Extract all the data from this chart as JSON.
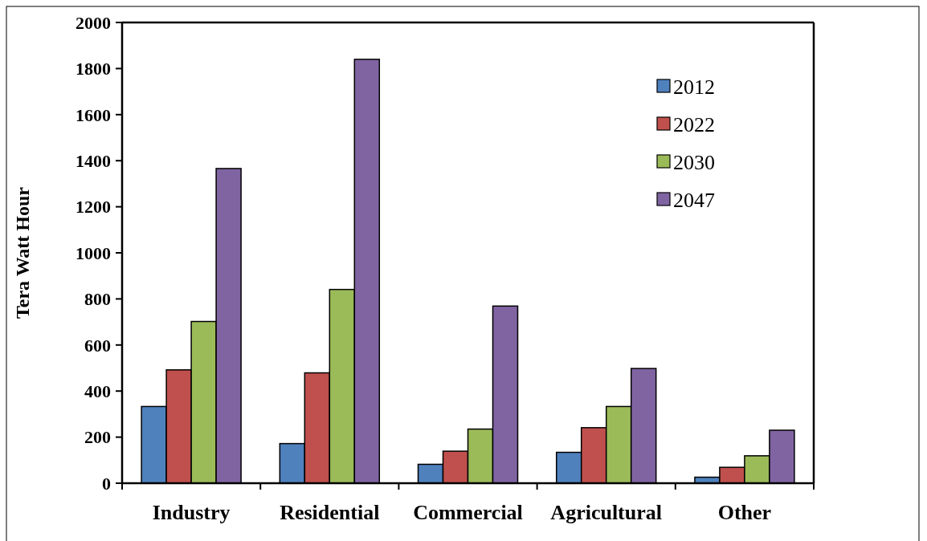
{
  "chart_data": {
    "type": "bar",
    "ylabel": "Tera Watt Hour",
    "categories": [
      "Industry",
      "Residential",
      "Commercial",
      "Agricultural",
      "Other"
    ],
    "series": [
      {
        "name": "2012",
        "color": "#4f81bd",
        "values": [
          333,
          172,
          82,
          134,
          26
        ]
      },
      {
        "name": "2022",
        "color": "#c0504d",
        "values": [
          492,
          479,
          139,
          241,
          69
        ]
      },
      {
        "name": "2030",
        "color": "#9bbb59",
        "values": [
          702,
          841,
          235,
          333,
          119
        ]
      },
      {
        "name": "2047",
        "color": "#8064a2",
        "values": [
          1366,
          1840,
          769,
          498,
          230
        ]
      }
    ],
    "ylim": [
      0,
      2000
    ],
    "yticks": [
      0,
      200,
      400,
      600,
      800,
      1000,
      1200,
      1400,
      1600,
      1800,
      2000
    ],
    "grid": false,
    "legend": "top right"
  }
}
